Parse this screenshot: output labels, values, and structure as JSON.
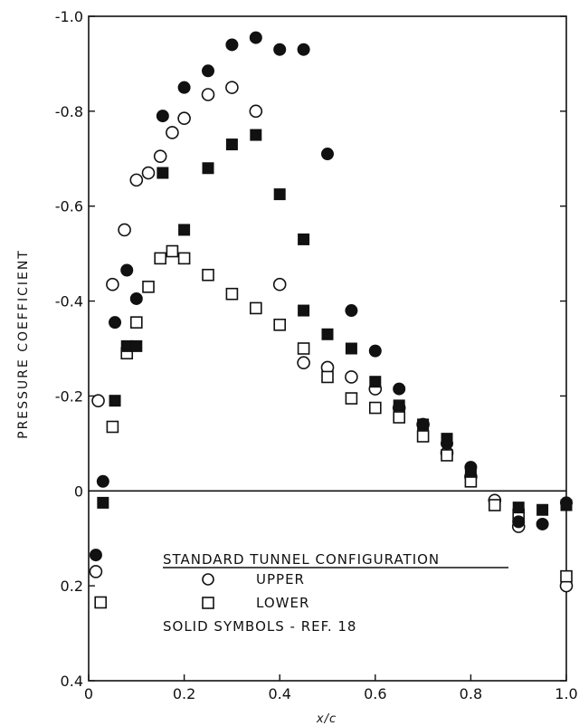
{
  "chart_data": {
    "type": "scatter",
    "title": "",
    "xlabel": "x/c",
    "ylabel": "PRESSURE COEFFICIENT",
    "xlim": [
      0,
      1.0
    ],
    "ylim": [
      0.4,
      -1.0
    ],
    "y_axis_inverted": true,
    "grid": false,
    "zero_line": true,
    "x_ticks": [
      "0",
      "0.2",
      "0.4",
      "0.6",
      "0.8",
      "1.0"
    ],
    "y_ticks": [
      "-1.0",
      "-0.8",
      "-0.6",
      "-0.4",
      "-0.2",
      "0",
      "0.2",
      "0.4"
    ],
    "legend": {
      "heading": "STANDARD TUNNEL CONFIGURATION",
      "entries": [
        {
          "symbol": "open-circle",
          "label": "UPPER"
        },
        {
          "symbol": "open-square",
          "label": "LOWER"
        }
      ],
      "note": "SOLID SYMBOLS - REF. 18",
      "placement": "bottom-center"
    },
    "series": [
      {
        "name": "UPPER",
        "marker": "open-circle",
        "points": [
          [
            0.015,
            0.17
          ],
          [
            0.02,
            -0.19
          ],
          [
            0.05,
            -0.435
          ],
          [
            0.075,
            -0.55
          ],
          [
            0.1,
            -0.655
          ],
          [
            0.125,
            -0.67
          ],
          [
            0.15,
            -0.705
          ],
          [
            0.175,
            -0.755
          ],
          [
            0.2,
            -0.785
          ],
          [
            0.25,
            -0.835
          ],
          [
            0.3,
            -0.85
          ],
          [
            0.35,
            -0.8
          ],
          [
            0.4,
            -0.435
          ],
          [
            0.45,
            -0.27
          ],
          [
            0.5,
            -0.26
          ],
          [
            0.55,
            -0.24
          ],
          [
            0.6,
            -0.215
          ],
          [
            0.65,
            -0.175
          ],
          [
            0.7,
            -0.14
          ],
          [
            0.75,
            -0.08
          ],
          [
            0.8,
            -0.03
          ],
          [
            0.85,
            0.02
          ],
          [
            0.9,
            0.075
          ],
          [
            1.0,
            0.2
          ]
        ]
      },
      {
        "name": "LOWER",
        "marker": "open-square",
        "points": [
          [
            0.025,
            0.235
          ],
          [
            0.05,
            -0.135
          ],
          [
            0.08,
            -0.29
          ],
          [
            0.1,
            -0.355
          ],
          [
            0.125,
            -0.43
          ],
          [
            0.15,
            -0.49
          ],
          [
            0.175,
            -0.505
          ],
          [
            0.2,
            -0.49
          ],
          [
            0.25,
            -0.455
          ],
          [
            0.3,
            -0.415
          ],
          [
            0.35,
            -0.385
          ],
          [
            0.4,
            -0.35
          ],
          [
            0.45,
            -0.3
          ],
          [
            0.5,
            -0.24
          ],
          [
            0.55,
            -0.195
          ],
          [
            0.6,
            -0.175
          ],
          [
            0.65,
            -0.155
          ],
          [
            0.7,
            -0.115
          ],
          [
            0.75,
            -0.075
          ],
          [
            0.8,
            -0.02
          ],
          [
            0.85,
            0.03
          ],
          [
            0.9,
            0.05
          ],
          [
            1.0,
            0.18
          ]
        ]
      },
      {
        "name": "REF. 18 upper",
        "marker": "solid-circle",
        "points": [
          [
            0.015,
            0.135
          ],
          [
            0.03,
            -0.02
          ],
          [
            0.055,
            -0.355
          ],
          [
            0.08,
            -0.465
          ],
          [
            0.1,
            -0.405
          ],
          [
            0.155,
            -0.79
          ],
          [
            0.2,
            -0.85
          ],
          [
            0.25,
            -0.885
          ],
          [
            0.3,
            -0.94
          ],
          [
            0.35,
            -0.955
          ],
          [
            0.4,
            -0.93
          ],
          [
            0.45,
            -0.93
          ],
          [
            0.5,
            -0.71
          ],
          [
            0.55,
            -0.38
          ],
          [
            0.6,
            -0.295
          ],
          [
            0.65,
            -0.215
          ],
          [
            0.7,
            -0.14
          ],
          [
            0.75,
            -0.1
          ],
          [
            0.8,
            -0.05
          ],
          [
            0.9,
            0.065
          ],
          [
            0.95,
            0.07
          ],
          [
            1.0,
            0.025
          ]
        ]
      },
      {
        "name": "REF. 18 lower",
        "marker": "solid-square",
        "points": [
          [
            0.03,
            0.025
          ],
          [
            0.055,
            -0.19
          ],
          [
            0.08,
            -0.305
          ],
          [
            0.1,
            -0.305
          ],
          [
            0.155,
            -0.67
          ],
          [
            0.2,
            -0.55
          ],
          [
            0.25,
            -0.68
          ],
          [
            0.3,
            -0.73
          ],
          [
            0.35,
            -0.75
          ],
          [
            0.4,
            -0.625
          ],
          [
            0.45,
            -0.53
          ],
          [
            0.45,
            -0.38
          ],
          [
            0.5,
            -0.33
          ],
          [
            0.55,
            -0.3
          ],
          [
            0.6,
            -0.23
          ],
          [
            0.65,
            -0.18
          ],
          [
            0.7,
            -0.14
          ],
          [
            0.75,
            -0.11
          ],
          [
            0.8,
            -0.04
          ],
          [
            0.9,
            0.035
          ],
          [
            0.95,
            0.04
          ],
          [
            1.0,
            0.03
          ]
        ]
      }
    ]
  }
}
